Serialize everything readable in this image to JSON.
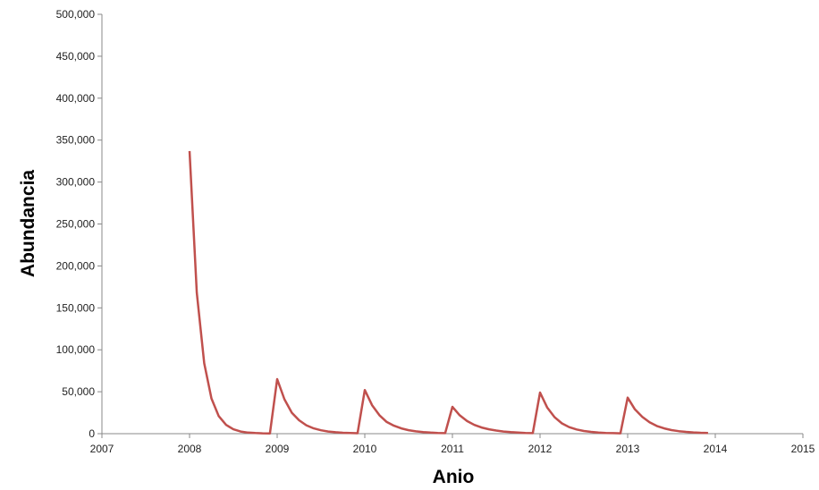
{
  "chart_data": {
    "type": "line",
    "title": "",
    "xlabel": "Anio",
    "ylabel": "Abundancia",
    "xlim": [
      2007,
      2015
    ],
    "ylim": [
      0,
      500000
    ],
    "x_ticks": [
      2007,
      2008,
      2009,
      2010,
      2011,
      2012,
      2013,
      2014,
      2015
    ],
    "x_tick_labels": [
      "2007",
      "2008",
      "2009",
      "2010",
      "2011",
      "2012",
      "2013",
      "2014",
      "2015"
    ],
    "y_ticks": [
      0,
      50000,
      100000,
      150000,
      200000,
      250000,
      300000,
      350000,
      400000,
      450000,
      500000
    ],
    "y_tick_labels": [
      "0",
      "50,000",
      "100,000",
      "150,000",
      "200,000",
      "250,000",
      "300,000",
      "350,000",
      "400,000",
      "450,000",
      "500,000"
    ],
    "grid": false,
    "legend": "none",
    "series": [
      {
        "color": "#c0504d",
        "x": [
          2008.0,
          2008.083,
          2008.167,
          2008.25,
          2008.333,
          2008.417,
          2008.5,
          2008.583,
          2008.667,
          2008.75,
          2008.833,
          2008.917,
          2009.0,
          2009.083,
          2009.167,
          2009.25,
          2009.333,
          2009.417,
          2009.5,
          2009.583,
          2009.667,
          2009.75,
          2009.833,
          2009.917,
          2010.0,
          2010.083,
          2010.167,
          2010.25,
          2010.333,
          2010.417,
          2010.5,
          2010.583,
          2010.667,
          2010.75,
          2010.833,
          2010.917,
          2011.0,
          2011.083,
          2011.167,
          2011.25,
          2011.333,
          2011.417,
          2011.5,
          2011.583,
          2011.667,
          2011.75,
          2011.833,
          2011.917,
          2012.0,
          2012.083,
          2012.167,
          2012.25,
          2012.333,
          2012.417,
          2012.5,
          2012.583,
          2012.667,
          2012.75,
          2012.833,
          2012.917,
          2013.0,
          2013.083,
          2013.167,
          2013.25,
          2013.333,
          2013.417,
          2013.5,
          2013.583,
          2013.667,
          2013.75,
          2013.833,
          2013.917
        ],
        "y": [
          337000,
          168000,
          84000,
          42000,
          21000,
          10500,
          5200,
          2600,
          1300,
          700,
          400,
          300,
          65000,
          41000,
          25000,
          16000,
          10000,
          6300,
          4000,
          2600,
          1700,
          1100,
          700,
          500,
          52000,
          34000,
          22000,
          14000,
          9500,
          6300,
          4200,
          2800,
          1900,
          1300,
          900,
          600,
          32000,
          22000,
          15000,
          10500,
          7400,
          5200,
          3700,
          2600,
          1800,
          1300,
          900,
          600,
          49000,
          31000,
          19500,
          12300,
          7800,
          5000,
          3200,
          2100,
          1400,
          900,
          600,
          400,
          43000,
          29000,
          20000,
          13500,
          9200,
          6300,
          4300,
          3000,
          2100,
          1500,
          1100,
          800
        ]
      }
    ]
  }
}
